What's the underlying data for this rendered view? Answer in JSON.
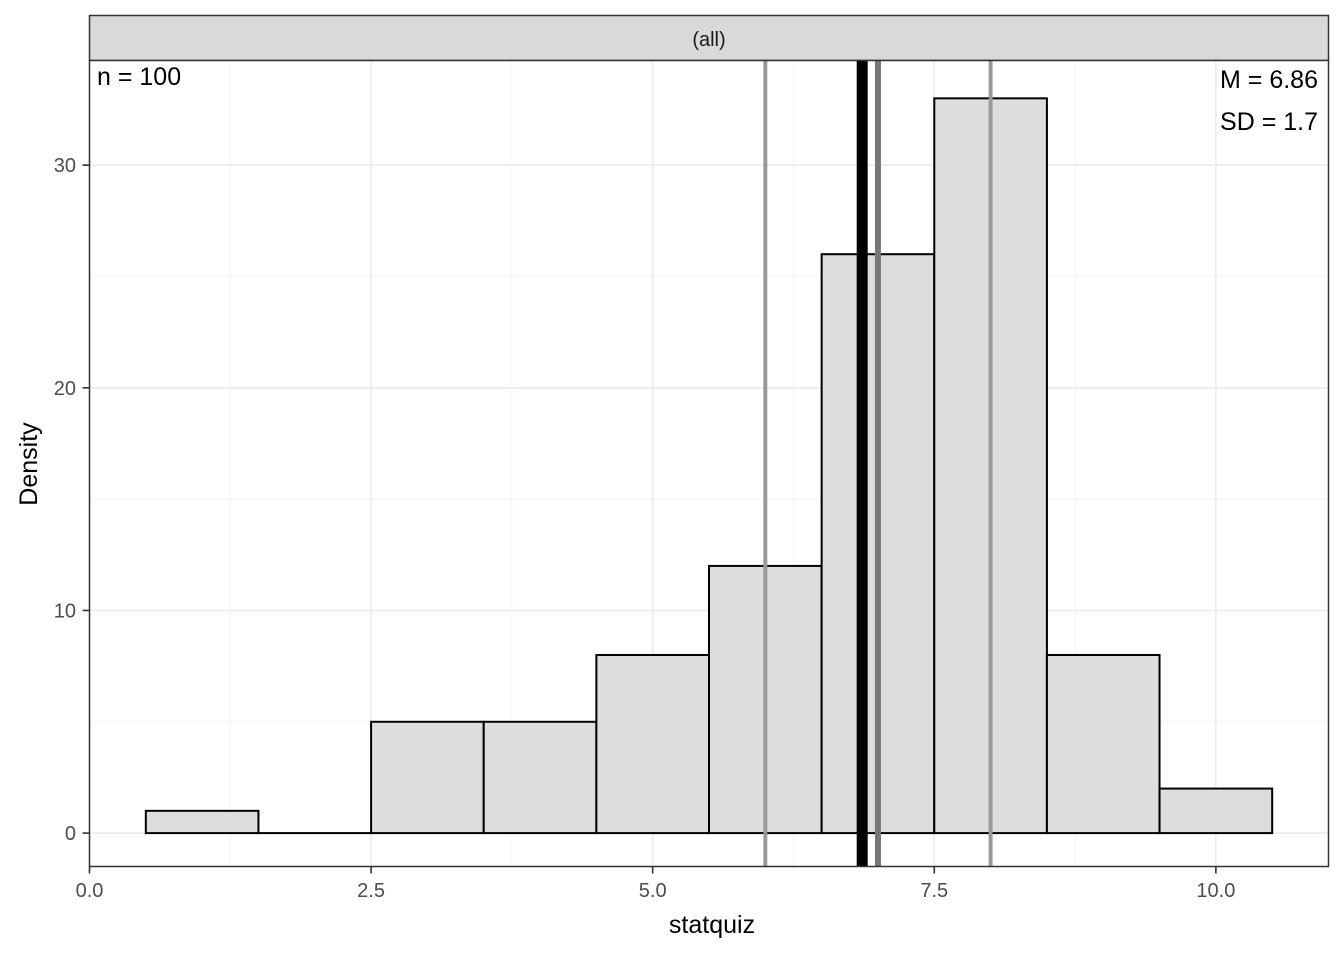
{
  "chart_data": {
    "type": "histogram",
    "facet_label": "(all)",
    "xlabel": "statquiz",
    "ylabel": "Density",
    "xlim": [
      0,
      11
    ],
    "ylim": [
      -1.5,
      34.7
    ],
    "x_ticks": [
      0,
      2.5,
      5,
      7.5,
      10
    ],
    "x_tick_labels": [
      "0.0",
      "2.5",
      "5.0",
      "7.5",
      "10.0"
    ],
    "y_ticks": [
      0,
      10,
      20,
      30
    ],
    "y_tick_labels": [
      "0",
      "10",
      "20",
      "30"
    ],
    "grid": true,
    "bins": [
      {
        "x0": 0.5,
        "x1": 1.5,
        "value": 1
      },
      {
        "x0": 1.5,
        "x1": 2.5,
        "value": 0
      },
      {
        "x0": 2.5,
        "x1": 3.5,
        "value": 5
      },
      {
        "x0": 3.5,
        "x1": 4.5,
        "value": 5
      },
      {
        "x0": 4.5,
        "x1": 5.5,
        "value": 8
      },
      {
        "x0": 5.5,
        "x1": 6.5,
        "value": 12
      },
      {
        "x0": 6.5,
        "x1": 7.5,
        "value": 26
      },
      {
        "x0": 7.5,
        "x1": 8.5,
        "value": 33
      },
      {
        "x0": 8.5,
        "x1": 9.5,
        "value": 8
      },
      {
        "x0": 9.5,
        "x1": 10.5,
        "value": 2
      }
    ],
    "reference_lines": [
      {
        "name": "q1",
        "x": 6,
        "color": "#999999"
      },
      {
        "name": "mean",
        "x": 6.86,
        "color": "#000000"
      },
      {
        "name": "median",
        "x": 7,
        "color": "#777777"
      },
      {
        "name": "q3",
        "x": 8,
        "color": "#999999"
      }
    ],
    "annotations": {
      "n_text": "n = 100",
      "mean_text": "M = 6.86",
      "sd_text": "SD = 1.7"
    },
    "colors": {
      "bar_fill": "#dddddd",
      "bar_stroke": "#000000",
      "strip_fill": "#d9d9d9"
    }
  }
}
